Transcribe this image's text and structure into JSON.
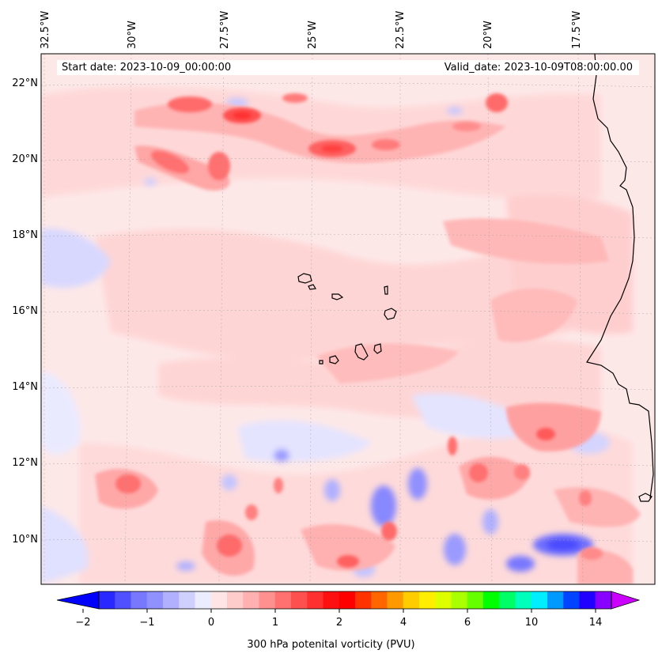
{
  "header": {
    "start_date": "Start date: 2023-10-09_00:00:00",
    "valid_date": "Valid_date: 2023-10-09T08:00:00.00"
  },
  "map": {
    "lon_labels": [
      "32.5°W",
      "30°W",
      "27.5°W",
      "25°W",
      "22.5°W",
      "20°W",
      "17.5°W"
    ],
    "lat_labels": [
      "22°N",
      "20°N",
      "18°N",
      "16°N",
      "14°N",
      "12°N",
      "10°N"
    ],
    "background_color": "#fbe6e6"
  },
  "colorbar": {
    "label": "300 hPa potenital vorticity (PVU)",
    "tick_labels": [
      "−2",
      "−1",
      "0",
      "1",
      "2",
      "4",
      "6",
      "10",
      "14"
    ],
    "colors": [
      "#0000ff",
      "#2828ff",
      "#5050ff",
      "#7878ff",
      "#9090ff",
      "#b0b0ff",
      "#d0d0ff",
      "#ececff",
      "#ffe6e6",
      "#ffcccc",
      "#ffb0b0",
      "#ff9090",
      "#ff7070",
      "#ff5050",
      "#ff3030",
      "#ff1010",
      "#ff0000",
      "#ff3300",
      "#ff6600",
      "#ff9900",
      "#ffcc00",
      "#ffee00",
      "#ddff00",
      "#aaff00",
      "#66ff00",
      "#00ff00",
      "#00ff66",
      "#00ffbb",
      "#00eeff",
      "#0099ff",
      "#0044ff",
      "#2200ff",
      "#8800ff",
      "#cc00ff"
    ]
  }
}
